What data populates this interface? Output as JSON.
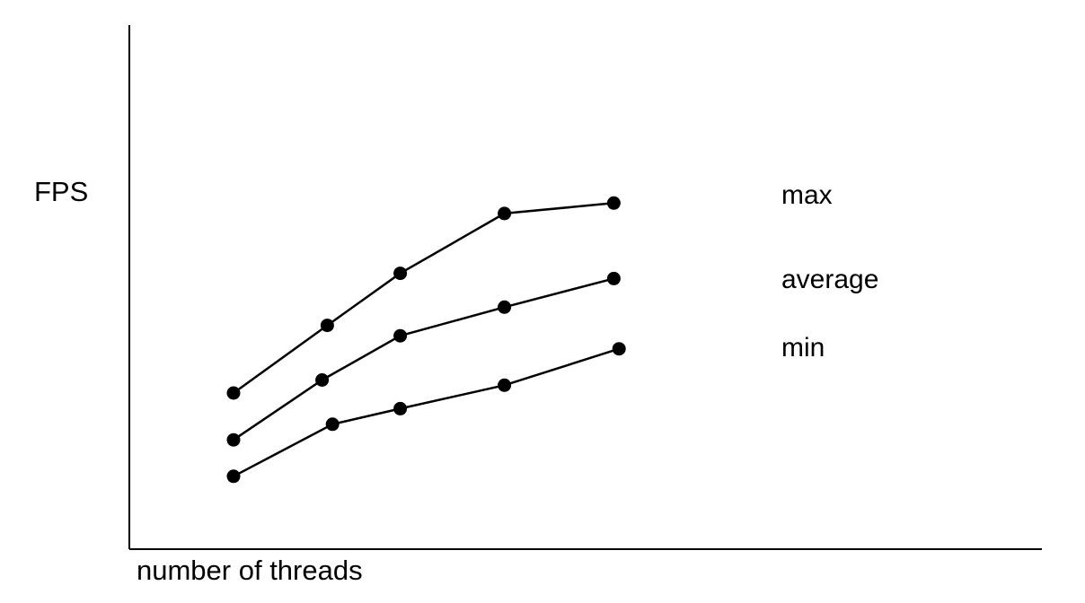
{
  "chart_data": {
    "type": "line",
    "title": "",
    "xlabel": "number of threads",
    "ylabel": "FPS",
    "grid": false,
    "legend": "direct labels at right end of each line",
    "x": [
      1,
      2,
      3,
      4,
      5
    ],
    "xlim": [
      0,
      7
    ],
    "ylim": [
      0,
      10
    ],
    "series": [
      {
        "name": "max",
        "x": [
          1,
          1.9,
          2.6,
          3.6,
          4.65
        ],
        "values": [
          3.0,
          4.3,
          5.3,
          6.45,
          6.65
        ]
      },
      {
        "name": "average",
        "x": [
          1,
          1.85,
          2.6,
          3.6,
          4.65
        ],
        "values": [
          2.1,
          3.25,
          4.1,
          4.65,
          5.2
        ]
      },
      {
        "name": "min",
        "x": [
          1,
          1.95,
          2.6,
          3.6,
          4.7
        ],
        "values": [
          1.4,
          2.4,
          2.7,
          3.15,
          3.85
        ]
      }
    ],
    "colors": {
      "line": "#000000",
      "axis": "#000000"
    }
  }
}
